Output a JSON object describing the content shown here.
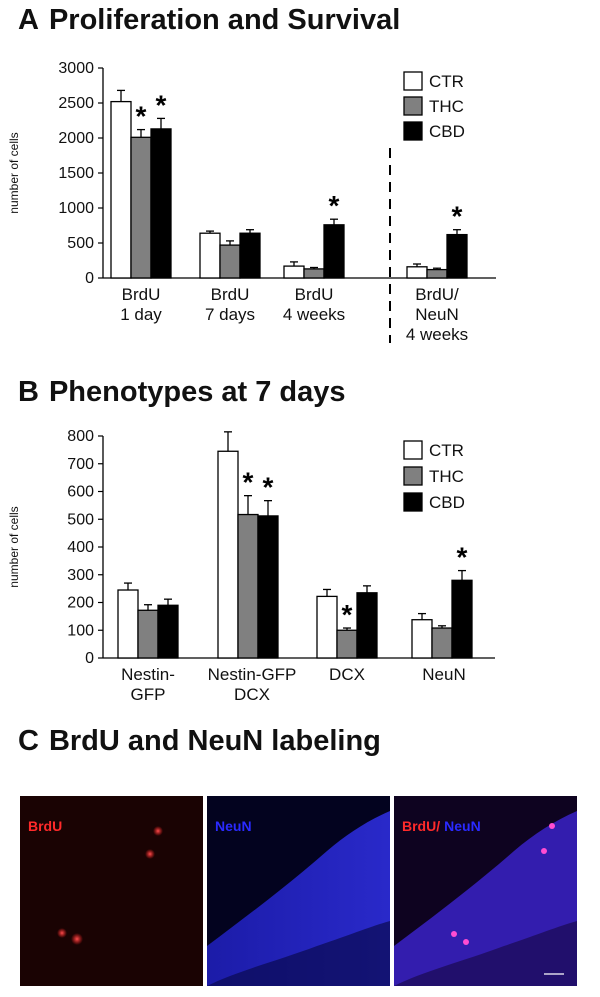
{
  "panels": {
    "a": {
      "letter": "A",
      "title": "Proliferation and Survival"
    },
    "b": {
      "letter": "B",
      "title": "Phenotypes at 7 days"
    },
    "c": {
      "letter": "C",
      "title": "BrdU and NeuN labeling"
    }
  },
  "colors": {
    "CTR": "#ffffff",
    "THC": "#808080",
    "CBD": "#000000",
    "brdu": "#ff2a2a",
    "neun": "#2a2aff"
  },
  "chart_data": [
    {
      "type": "bar",
      "ylabel": "number of cells",
      "ylim": [
        0,
        3000
      ],
      "yticks": [
        0,
        500,
        1000,
        1500,
        2000,
        2500,
        3000
      ],
      "legend": [
        "CTR",
        "THC",
        "CBD"
      ],
      "legend_position": "top-right",
      "categories": [
        [
          "BrdU",
          "1 day"
        ],
        [
          "BrdU",
          "7 days"
        ],
        [
          "BrdU",
          "4 weeks"
        ],
        [
          "BrdU/",
          "NeuN",
          "4 weeks"
        ]
      ],
      "series": [
        {
          "name": "CTR",
          "values": [
            2520,
            640,
            170,
            160
          ],
          "errors": [
            160,
            30,
            60,
            40
          ]
        },
        {
          "name": "THC",
          "values": [
            2010,
            470,
            130,
            120
          ],
          "errors": [
            110,
            60,
            20,
            20
          ]
        },
        {
          "name": "CBD",
          "values": [
            2130,
            640,
            760,
            620
          ],
          "errors": [
            150,
            50,
            80,
            70
          ]
        }
      ],
      "significance": [
        [
          false,
          true,
          true
        ],
        [
          false,
          false,
          false
        ],
        [
          false,
          false,
          true
        ],
        [
          false,
          false,
          true
        ]
      ],
      "significance_marker": "*",
      "separator_before_category": 3
    },
    {
      "type": "bar",
      "ylabel": "number of cells",
      "ylim": [
        0,
        800
      ],
      "yticks": [
        0,
        100,
        200,
        300,
        400,
        500,
        600,
        700,
        800
      ],
      "legend": [
        "CTR",
        "THC",
        "CBD"
      ],
      "legend_position": "top-right",
      "categories": [
        [
          "Nestin-",
          "GFP"
        ],
        [
          "Nestin-GFP",
          "DCX"
        ],
        [
          "DCX"
        ],
        [
          "NeuN"
        ]
      ],
      "series": [
        {
          "name": "CTR",
          "values": [
            245,
            745,
            222,
            138
          ],
          "errors": [
            25,
            70,
            25,
            22
          ]
        },
        {
          "name": "THC",
          "values": [
            172,
            517,
            100,
            108
          ],
          "errors": [
            20,
            68,
            8,
            8
          ]
        },
        {
          "name": "CBD",
          "values": [
            190,
            512,
            235,
            280
          ],
          "errors": [
            22,
            55,
            25,
            35
          ]
        }
      ],
      "significance": [
        [
          false,
          false,
          false
        ],
        [
          false,
          true,
          true
        ],
        [
          false,
          true,
          false
        ],
        [
          false,
          false,
          true
        ]
      ],
      "significance_marker": "*"
    }
  ],
  "micrographs": [
    {
      "label": "BrdU",
      "color": "#ff2a2a"
    },
    {
      "label": "NeuN",
      "color": "#2a2aff"
    },
    {
      "label_a": "BrdU/",
      "color_a": "#ff2a2a",
      "label_b": "NeuN",
      "color_b": "#2a2aff"
    }
  ]
}
